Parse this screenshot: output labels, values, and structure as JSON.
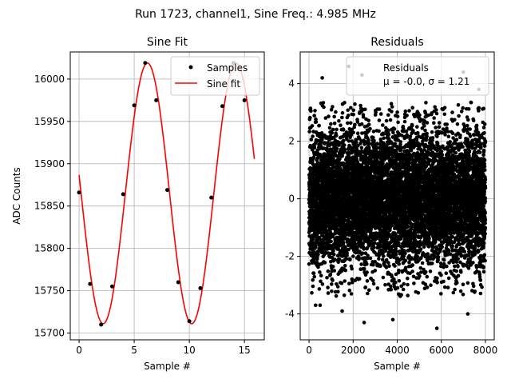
{
  "figure": {
    "suptitle": "Run 1723, channel1, Sine Freq.: 4.985 MHz"
  },
  "chart_data": [
    {
      "type": "line",
      "title": "Sine Fit",
      "xlabel": "Sample #",
      "ylabel": "ADC Counts",
      "xlim": [
        -0.8,
        16.8
      ],
      "ylim": [
        15692,
        16032
      ],
      "xticks": [
        0,
        5,
        10,
        15
      ],
      "yticks": [
        15700,
        15750,
        15800,
        15850,
        15900,
        15950,
        16000
      ],
      "grid": true,
      "legend": "top-right",
      "series": [
        {
          "name": "Samples",
          "kind": "scatter",
          "color": "#000000",
          "x": [
            0,
            1,
            2,
            3,
            4,
            5,
            6,
            7,
            8,
            9,
            10,
            11,
            12,
            13,
            14,
            15
          ],
          "y": [
            15866,
            15758,
            15710,
            15755,
            15864,
            15969,
            16019,
            15975,
            15869,
            15760,
            15714,
            15753,
            15860,
            15968,
            16019,
            15975
          ]
        },
        {
          "name": "Sine fit",
          "kind": "line",
          "color": "#ff0000",
          "function": {
            "offset": 15865,
            "amplitude": 154,
            "period": 8.03,
            "phase": 3.0
          },
          "x_range": [
            0,
            15.9
          ]
        }
      ]
    },
    {
      "type": "scatter",
      "title": "Residuals",
      "xlabel": "Sample #",
      "ylabel": "",
      "xlim": [
        -400,
        8400
      ],
      "ylim": [
        -4.9,
        5.1
      ],
      "xticks": [
        0,
        2000,
        4000,
        6000,
        8000
      ],
      "yticks": [
        -4,
        -2,
        0,
        2,
        4
      ],
      "grid": true,
      "legend": "top-right",
      "series": [
        {
          "name": "Residuals",
          "color": "#000000",
          "n_points": 8000,
          "mean": -0.0,
          "sigma": 1.21,
          "x_range": [
            0,
            8000
          ],
          "outliers": [
            [
              1800,
              4.6
            ],
            [
              2400,
              4.3
            ],
            [
              600,
              4.2
            ],
            [
              7000,
              4.4
            ],
            [
              7700,
              3.8
            ],
            [
              5800,
              -4.5
            ],
            [
              2500,
              -4.3
            ],
            [
              3800,
              -4.2
            ],
            [
              500,
              -3.7
            ],
            [
              300,
              -3.7
            ],
            [
              7200,
              -4.0
            ],
            [
              1500,
              -3.9
            ]
          ]
        }
      ],
      "legend_text": {
        "name": "Residuals",
        "stats": "μ = -0.0, σ = 1.21"
      }
    }
  ]
}
